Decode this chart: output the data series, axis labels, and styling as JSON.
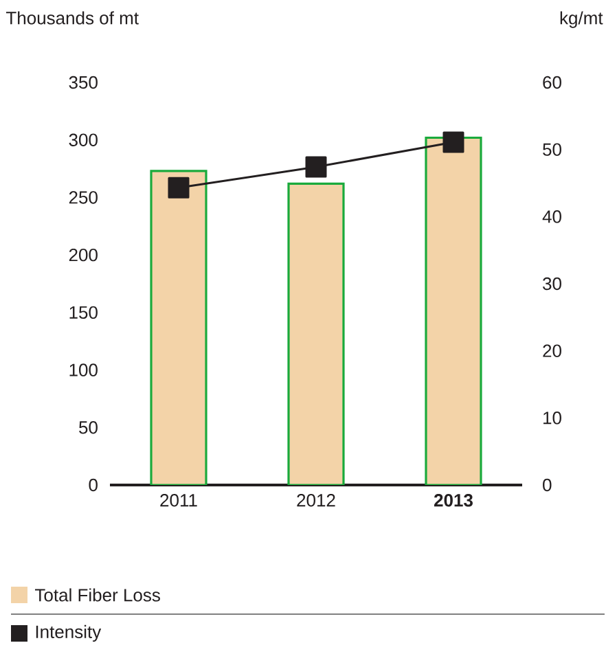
{
  "chart_data": {
    "type": "bar",
    "ylabel": "Thousands of mt",
    "y2label": "kg/mt",
    "categories": [
      "2011",
      "2012",
      "**2013**"
    ],
    "series": [
      {
        "name": "Total Fiber Loss",
        "color": "#f3d3a8",
        "values": [
          273,
          262,
          302
        ]
      },
      {
        "name": "Intensity",
        "type": "line",
        "axis": "y2",
        "color": "#231f20",
        "marker": "square",
        "line_style": "solid",
        "values": [
          44.3,
          47.4,
          51.1
        ]
      }
    ],
    "ylim": [
      0,
      350
    ],
    "yticks": [
      0,
      50,
      100,
      150,
      200,
      250,
      300,
      350
    ],
    "y2lim": [
      0,
      60
    ],
    "y2ticks": [
      0,
      10,
      20,
      30,
      40,
      50,
      60
    ],
    "legend": "bottom"
  }
}
